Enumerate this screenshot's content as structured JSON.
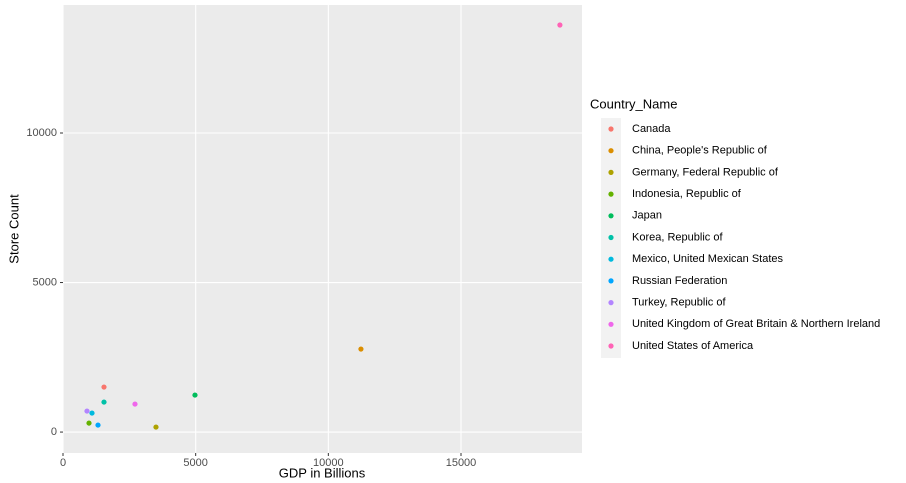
{
  "chart_data": {
    "type": "scatter",
    "x_label": "GDP in Billions",
    "y_label": "Store Count",
    "legend_title": "Country_Name",
    "xlim": [
      0,
      19560
    ],
    "ylim": [
      -700,
      14280
    ],
    "xticks": [
      0,
      5000,
      10000,
      15000
    ],
    "yticks": [
      0,
      5000,
      10000
    ],
    "grid": true,
    "legend": "right",
    "series": [
      {
        "name": "Canada",
        "color": "#F8766D",
        "x": [
          1545
        ],
        "values": [
          1505
        ]
      },
      {
        "name": "China, People's Republic of",
        "color": "#DB8E00",
        "x": [
          11229
        ],
        "values": [
          2776
        ]
      },
      {
        "name": "Germany, Federal Republic of",
        "color": "#AEA200",
        "x": [
          3504
        ],
        "values": [
          167
        ]
      },
      {
        "name": "Indonesia, Republic of",
        "color": "#64B200",
        "x": [
          980
        ],
        "values": [
          300
        ]
      },
      {
        "name": "Japan",
        "color": "#00BD5C",
        "x": [
          4974
        ],
        "values": [
          1237
        ]
      },
      {
        "name": "Korea, Republic of",
        "color": "#00C1A7",
        "x": [
          1545
        ],
        "values": [
          1003
        ]
      },
      {
        "name": "Mexico, United Mexican States",
        "color": "#00BADE",
        "x": [
          1093
        ],
        "values": [
          635
        ]
      },
      {
        "name": "Russian Federation",
        "color": "#00A6FF",
        "x": [
          1319
        ],
        "values": [
          234
        ]
      },
      {
        "name": "Turkey, Republic of",
        "color": "#B385FF",
        "x": [
          904
        ],
        "values": [
          702
        ]
      },
      {
        "name": "United Kingdom of Great Britain & Northern Ireland",
        "color": "#EF67EB",
        "x": [
          2713
        ],
        "values": [
          936
        ]
      },
      {
        "name": "United States of America",
        "color": "#FF63B6",
        "x": [
          18727
        ],
        "values": [
          13612
        ]
      }
    ]
  }
}
